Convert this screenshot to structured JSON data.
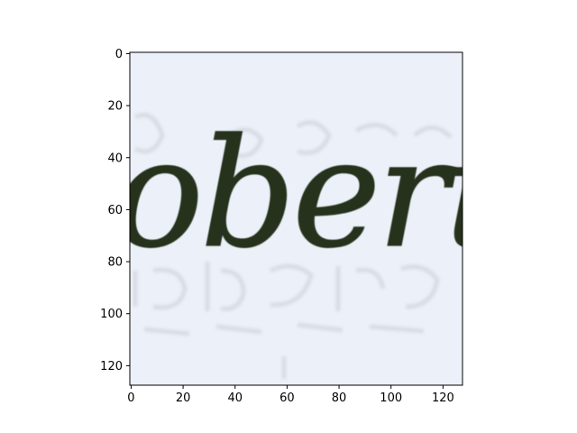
{
  "image": {
    "word": "obert",
    "background_color": "#ecf0f8",
    "ink_color": "#25321f",
    "ghost_color": "#c9ccd2"
  },
  "chart_data": {
    "type": "image",
    "title": "",
    "xlabel": "",
    "ylabel": "",
    "xlim": [
      -0.5,
      127.5
    ],
    "ylim": [
      127.5,
      -0.5
    ],
    "x_ticks": [
      0,
      20,
      40,
      60,
      80,
      100,
      120
    ],
    "y_ticks": [
      0,
      20,
      40,
      60,
      80,
      100,
      120
    ],
    "grid": false
  }
}
